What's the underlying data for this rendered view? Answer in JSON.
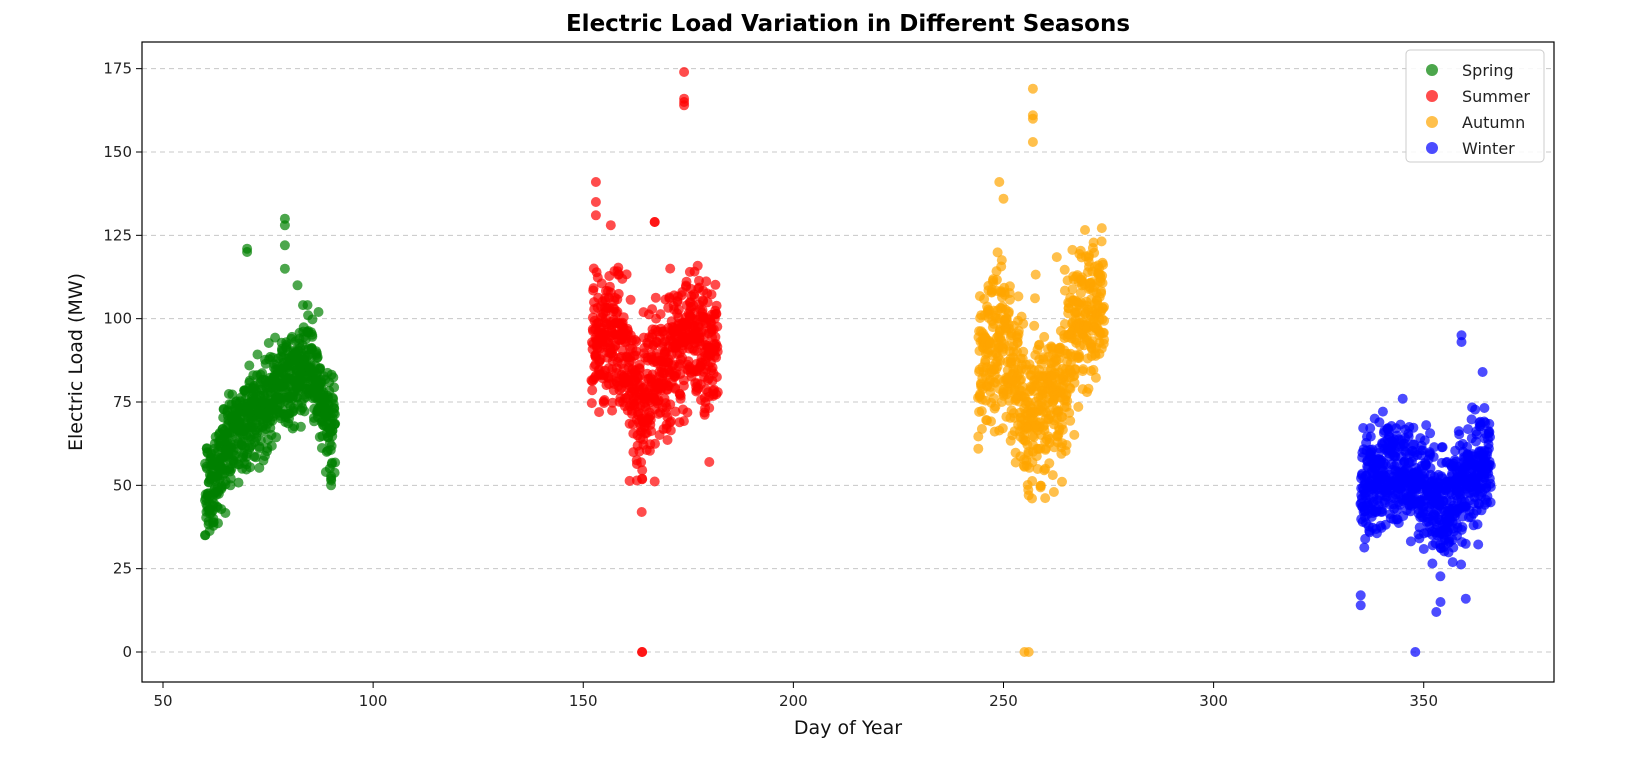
{
  "chart_data": {
    "type": "scatter",
    "title": "Electric Load Variation in Different Seasons",
    "xlabel": "Day of Year",
    "ylabel": "Electric Load (MW)",
    "xlim": [
      45,
      381
    ],
    "ylim": [
      -9,
      183
    ],
    "xticks": [
      50,
      100,
      150,
      200,
      250,
      300,
      350
    ],
    "yticks": [
      0,
      25,
      50,
      75,
      100,
      125,
      150,
      175
    ],
    "grid": "horizontal dashed",
    "legend_position": "top-right",
    "series": [
      {
        "name": "Spring",
        "color": "#008000",
        "day_range": [
          60,
          90
        ],
        "trend": [
          [
            60,
            45
          ],
          [
            65,
            62
          ],
          [
            70,
            70
          ],
          [
            75,
            76
          ],
          [
            80,
            82
          ],
          [
            85,
            86
          ],
          [
            90,
            66
          ]
        ],
        "spread": 10,
        "outliers": [
          [
            60,
            35
          ],
          [
            62,
            40
          ],
          [
            70,
            120
          ],
          [
            70,
            121
          ],
          [
            79,
            130
          ],
          [
            79,
            128
          ],
          [
            79,
            122
          ],
          [
            79,
            115
          ],
          [
            82,
            110
          ],
          [
            87,
            102
          ],
          [
            90,
            50
          ],
          [
            90,
            52
          ]
        ]
      },
      {
        "name": "Summer",
        "color": "#ff0000",
        "day_range": [
          152,
          181
        ],
        "trend": [
          [
            152,
            92
          ],
          [
            156,
            95
          ],
          [
            160,
            88
          ],
          [
            164,
            72
          ],
          [
            168,
            85
          ],
          [
            172,
            92
          ],
          [
            176,
            95
          ],
          [
            181,
            92
          ]
        ],
        "spread": 15,
        "outliers": [
          [
            153,
            141
          ],
          [
            153,
            135
          ],
          [
            153,
            131
          ],
          [
            164,
            0
          ],
          [
            164,
            0
          ],
          [
            167,
            129
          ],
          [
            167,
            129
          ],
          [
            174,
            174
          ],
          [
            174,
            166
          ],
          [
            174,
            165
          ],
          [
            174,
            164
          ],
          [
            164,
            52
          ],
          [
            180,
            57
          ]
        ]
      },
      {
        "name": "Autumn",
        "color": "#ffa500",
        "day_range": [
          244,
          273
        ],
        "trend": [
          [
            244,
            88
          ],
          [
            248,
            95
          ],
          [
            252,
            85
          ],
          [
            256,
            70
          ],
          [
            260,
            75
          ],
          [
            264,
            80
          ],
          [
            268,
            100
          ],
          [
            273,
            102
          ]
        ],
        "spread": 16,
        "outliers": [
          [
            249,
            141
          ],
          [
            250,
            136
          ],
          [
            255,
            0
          ],
          [
            256,
            0
          ],
          [
            257,
            169
          ],
          [
            257,
            160
          ],
          [
            257,
            161
          ],
          [
            257,
            153
          ],
          [
            256,
            47
          ],
          [
            262,
            48
          ],
          [
            244,
            61
          ]
        ]
      },
      {
        "name": "Winter",
        "color": "#0000ff",
        "day_range": [
          335,
          365
        ],
        "trend": [
          [
            335,
            48
          ],
          [
            340,
            54
          ],
          [
            345,
            53
          ],
          [
            350,
            48
          ],
          [
            355,
            42
          ],
          [
            360,
            52
          ],
          [
            365,
            58
          ]
        ],
        "spread": 11,
        "outliers": [
          [
            335,
            14
          ],
          [
            335,
            17
          ],
          [
            348,
            0
          ],
          [
            353,
            12
          ],
          [
            354,
            15
          ],
          [
            359,
            95
          ],
          [
            359,
            93
          ],
          [
            360,
            16
          ],
          [
            364,
            84
          ],
          [
            345,
            76
          ]
        ]
      }
    ]
  }
}
